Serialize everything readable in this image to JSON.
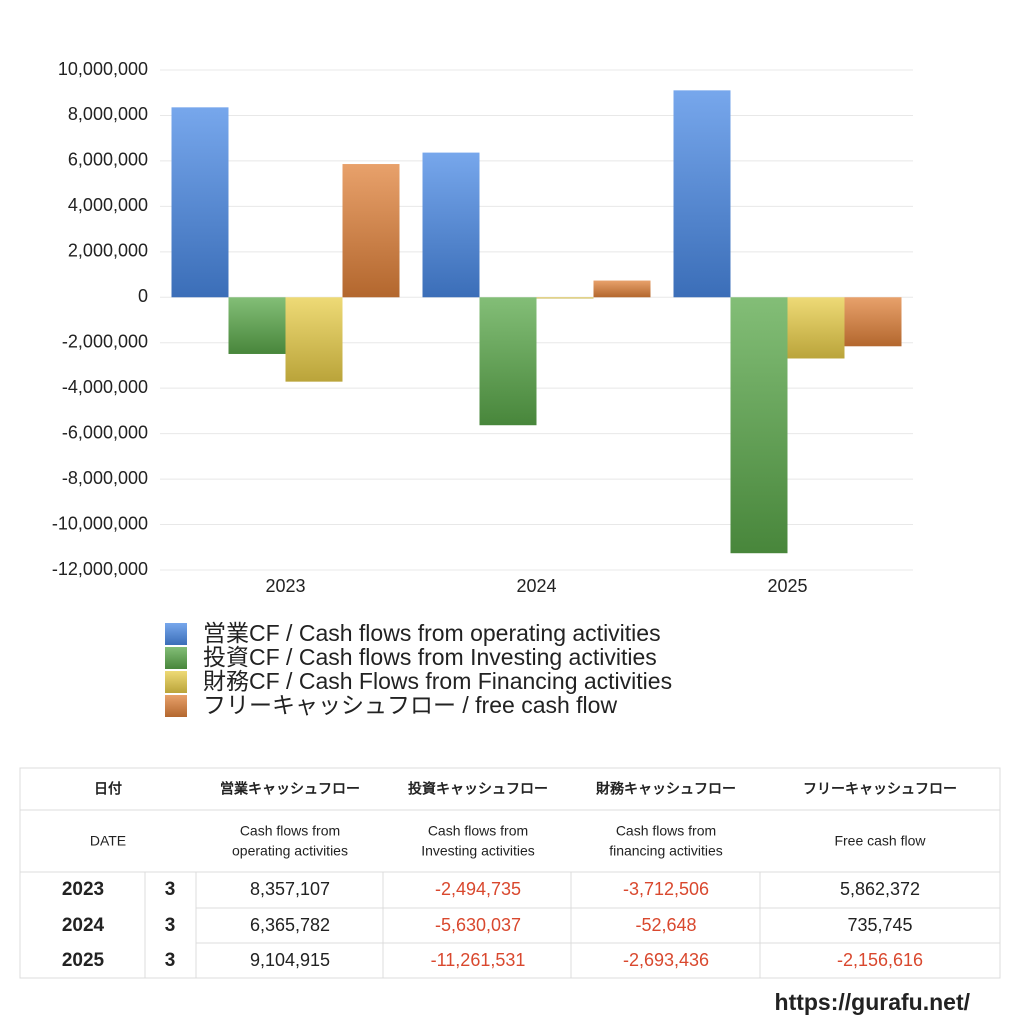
{
  "chart_data": {
    "type": "bar",
    "categories": [
      "2023",
      "2024",
      "2025"
    ],
    "series": [
      {
        "name": "営業CF / Cash flows from operating activities",
        "color": "#4a8ae6",
        "values": [
          8357107,
          6365782,
          9104915
        ]
      },
      {
        "name": "投資CF / Cash flows from Investing activities",
        "color": "#5aa84a",
        "values": [
          -2494735,
          -5630037,
          -11261531
        ]
      },
      {
        "name": "財務CF / Cash Flows from Financing activities",
        "color": "#e8cd48",
        "values": [
          -3712506,
          -52648,
          -2693436
        ]
      },
      {
        "name": "フリーキャッシュフロー / free cash flow",
        "color": "#e0813a",
        "values": [
          5862372,
          735745,
          -2156616
        ]
      }
    ],
    "ylim": [
      -12000000,
      10000000
    ],
    "yticks": [
      {
        "value": 10000000,
        "label": "10,000,000"
      },
      {
        "value": 8000000,
        "label": "8,000,000"
      },
      {
        "value": 6000000,
        "label": "6,000,000"
      },
      {
        "value": 4000000,
        "label": "4,000,000"
      },
      {
        "value": 2000000,
        "label": "2,000,000"
      },
      0,
      {
        "value": -2000000,
        "label": "-2,000,000"
      },
      {
        "value": -4000000,
        "label": "-4,000,000"
      },
      {
        "value": -6000000,
        "label": "-6,000,000"
      },
      {
        "value": -8000000,
        "label": "-8,000,000"
      },
      {
        "value": -10000000,
        "label": "-10,000,000"
      },
      {
        "value": -12000000,
        "label": "-12,000,000"
      }
    ],
    "grid": true,
    "legend": "bottom"
  },
  "table": {
    "header": [
      "日付",
      "営業キャッシュフロー",
      "投資キャッシュフロー",
      "財務キャッシュフロー",
      "フリーキャッシュフロー"
    ],
    "subheader": [
      [
        "DATE"
      ],
      [
        "Cash flows from",
        "operating activities"
      ],
      [
        "Cash flows from",
        "Investing activities"
      ],
      [
        "Cash flows from",
        "financing activities"
      ],
      [
        "Free cash flow"
      ]
    ],
    "rows": [
      [
        "2023",
        "3",
        "8,357,107",
        "-2,494,735",
        "-3,712,506",
        "5,862,372"
      ],
      [
        "2024",
        "3",
        "6,365,782",
        "-5,630,037",
        "-52,648",
        "735,745"
      ],
      [
        "2025",
        "3",
        "9,104,915",
        "-11,261,531",
        "-2,693,436",
        "-2,156,616"
      ]
    ]
  },
  "footer": "https://gurafu.net/"
}
